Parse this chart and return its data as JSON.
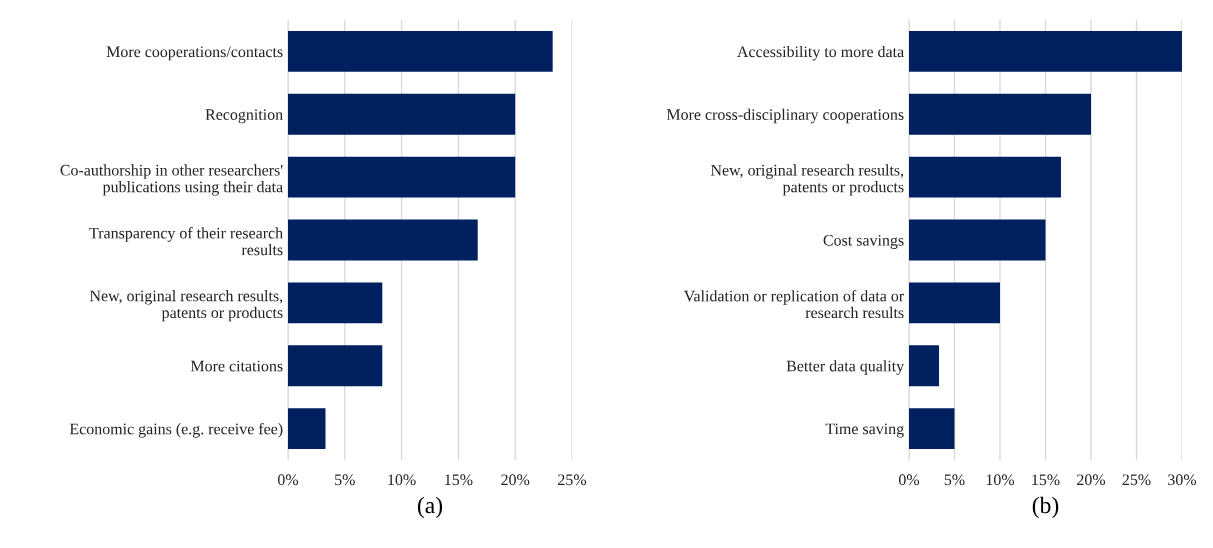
{
  "chart_data": [
    {
      "type": "bar",
      "orientation": "horizontal",
      "xlabel": "(a)",
      "categories": [
        "More cooperations/contacts",
        "Recognition",
        "Co-authorship in other researchers'\npublications using their data",
        "Transparency of their research\nresults",
        "New, original research results,\npatents or products",
        "More citations",
        "Economic gains (e.g. receive fee)"
      ],
      "values": [
        23.3,
        20,
        20,
        16.7,
        8.3,
        8.3,
        3.3
      ],
      "color": "#002060",
      "xlim": [
        0,
        25
      ],
      "xticks": [
        {
          "value": 0,
          "label": "0%"
        },
        {
          "value": 5,
          "label": "5%"
        },
        {
          "value": 10,
          "label": "10%"
        },
        {
          "value": 15,
          "label": "15%"
        },
        {
          "value": 20,
          "label": "20%"
        },
        {
          "value": 25,
          "label": "25%"
        }
      ],
      "grid": "x"
    },
    {
      "type": "bar",
      "orientation": "horizontal",
      "xlabel": "(b)",
      "categories": [
        "Accessibility to more data",
        "More cross-disciplinary cooperations",
        "New, original research results,\npatents or products",
        "Cost savings",
        "Validation or replication of data or\nresearch results",
        "Better data quality",
        "Time saving"
      ],
      "values": [
        30,
        20,
        16.7,
        15,
        10,
        3.3,
        5
      ],
      "color": "#002060",
      "xlim": [
        0,
        30
      ],
      "xticks": [
        {
          "value": 0,
          "label": "0%"
        },
        {
          "value": 5,
          "label": "5%"
        },
        {
          "value": 10,
          "label": "10%"
        },
        {
          "value": 15,
          "label": "15%"
        },
        {
          "value": 20,
          "label": "20%"
        },
        {
          "value": 25,
          "label": "25%"
        },
        {
          "value": 30,
          "label": "30%"
        }
      ],
      "grid": "x"
    }
  ]
}
